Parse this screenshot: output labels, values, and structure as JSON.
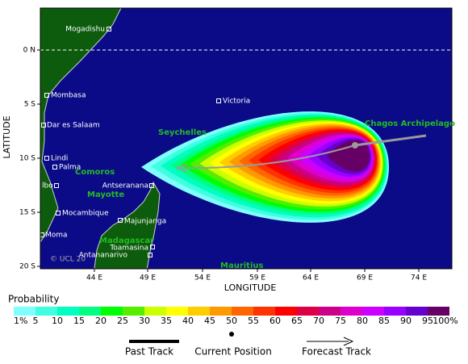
{
  "map": {
    "lat_labels": [
      "0 N",
      "5 S",
      "10 S",
      "15 S",
      "20 S"
    ],
    "lon_labels": [
      "44 E",
      "49 E",
      "54 E",
      "59 E",
      "64 E",
      "69 E",
      "74 E"
    ],
    "x_axis_title": "LONGITUDE",
    "y_axis_title": "LATITUDE",
    "places": [
      "Mogadishu",
      "Mombasa",
      "Dar es Salaam",
      "Lindi",
      "Palma",
      "lbo",
      "Mocambique",
      "Moma",
      "Antseranana",
      "Majunjanga",
      "Toamasina",
      "Antananarivo",
      "Victoria"
    ],
    "regions": [
      "Seychelles",
      "Chagos Archipelago",
      "Comoros",
      "Mayotte",
      "Madagascar",
      "Mauritius"
    ],
    "copyright": "© UCL 20"
  },
  "colorbar": {
    "title": "Probability",
    "labels": [
      "1%",
      "5",
      "10",
      "15",
      "20",
      "25",
      "30",
      "35",
      "40",
      "45",
      "50",
      "55",
      "60",
      "65",
      "70",
      "75",
      "80",
      "85",
      "90",
      "95",
      "100%"
    ],
    "colors": [
      "#80ffff",
      "#40ffe0",
      "#00ffc0",
      "#00ff80",
      "#00ff00",
      "#55ee00",
      "#ccff00",
      "#ffff00",
      "#ffcc00",
      "#ff9900",
      "#ff6600",
      "#ff3300",
      "#ff0000",
      "#dd0044",
      "#cc0088",
      "#dd00cc",
      "#cc00ff",
      "#9900ff",
      "#6600cc",
      "#660066"
    ]
  },
  "legend": [
    "Past Track",
    "Current Position",
    "Forecast Track"
  ]
}
